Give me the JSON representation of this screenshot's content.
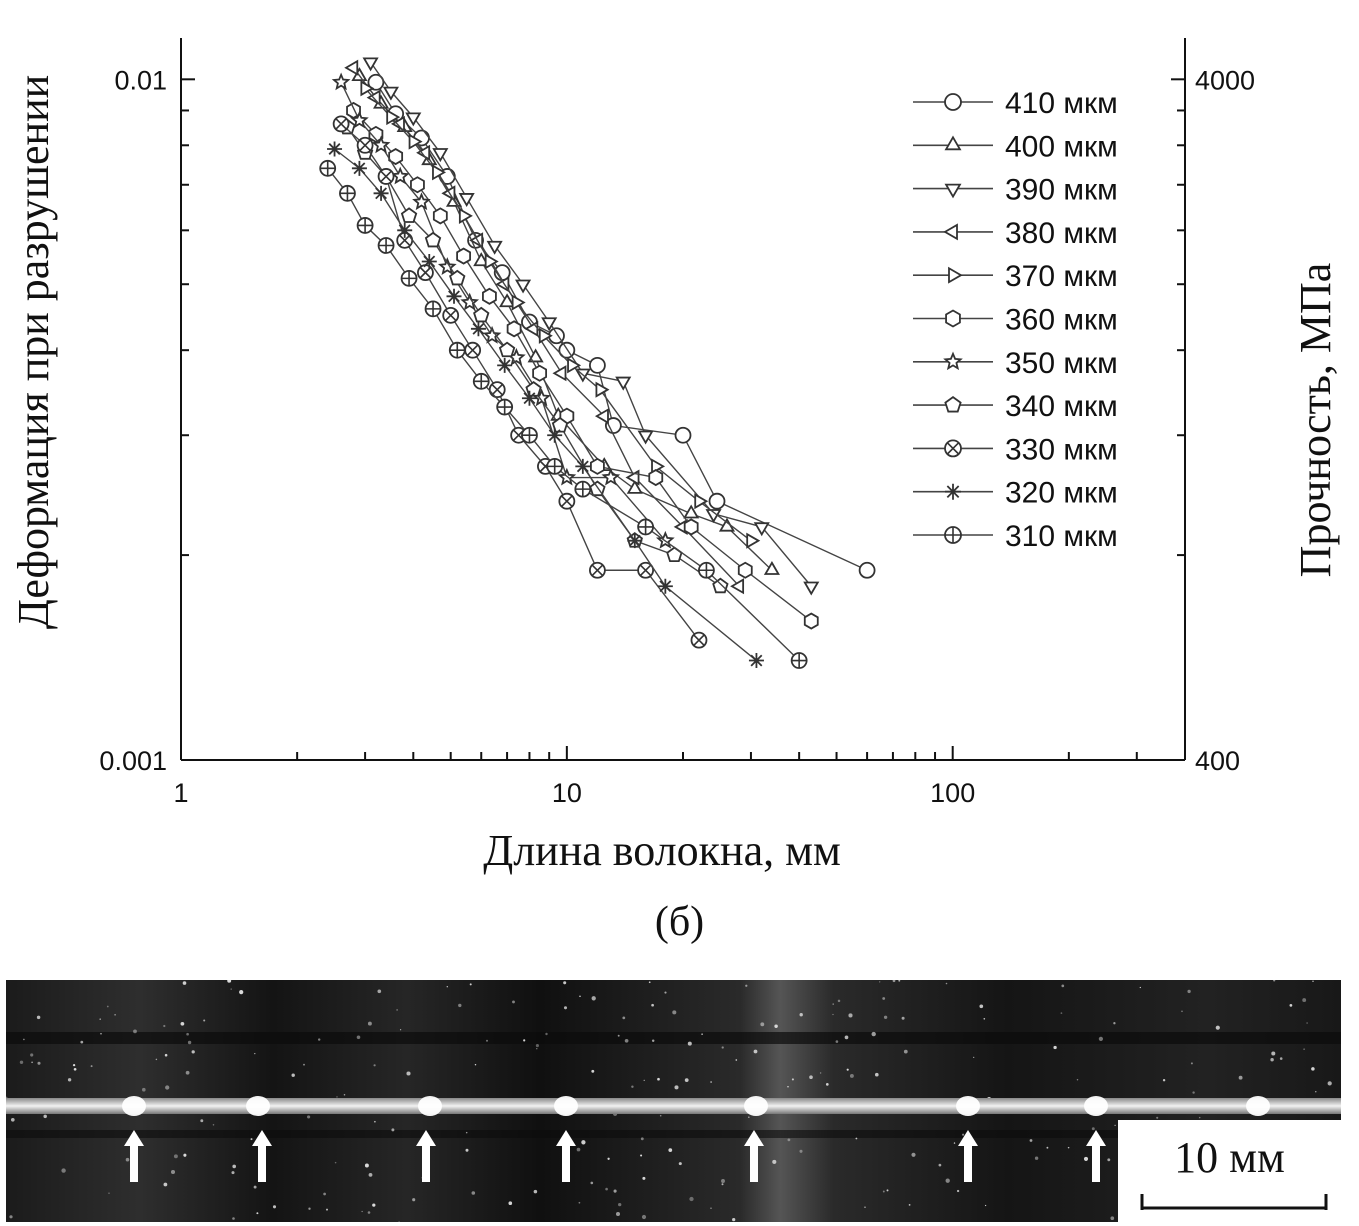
{
  "chart_data": {
    "type": "scatter",
    "x_scale": "log",
    "y_scale": "log",
    "xlim": [
      1,
      400
    ],
    "ylim": [
      0.001,
      0.0115
    ],
    "xlabel": "Длина волокна, мм",
    "ylabel": "Деформация при разрушении",
    "y2label": "Прочность, МПа",
    "x_ticks": [
      "1",
      "10",
      "100"
    ],
    "y_ticks": [
      "0.01",
      "0.001"
    ],
    "y2_ticks": [
      "4000",
      "400"
    ],
    "y2_values": [
      4000,
      400
    ],
    "grid": false,
    "legend_position": "top-right",
    "series": [
      {
        "name": "410 мкм",
        "marker": "circle",
        "x": [
          3.2,
          3.6,
          4.2,
          4.9,
          5.8,
          6.8,
          8.0,
          9.4,
          10.0,
          12.0,
          13.2,
          20.0,
          24.5,
          60.0
        ],
        "y": [
          0.0099,
          0.0089,
          0.0082,
          0.0072,
          0.0058,
          0.0052,
          0.0044,
          0.0042,
          0.004,
          0.0038,
          0.0031,
          0.003,
          0.0024,
          0.0019
        ]
      },
      {
        "name": "400 мкм",
        "marker": "triangle-up",
        "x": [
          2.9,
          3.3,
          3.8,
          4.4,
          5.1,
          6.0,
          7.0,
          8.3,
          9.5,
          12.5,
          15.0,
          21.0,
          26.0,
          34.0
        ],
        "y": [
          0.0101,
          0.0092,
          0.0085,
          0.0076,
          0.0066,
          0.0054,
          0.0047,
          0.0039,
          0.0032,
          0.0027,
          0.0025,
          0.0023,
          0.0022,
          0.0019
        ]
      },
      {
        "name": "390 мкм",
        "marker": "triangle-down",
        "x": [
          3.1,
          3.5,
          4.0,
          4.7,
          5.5,
          6.5,
          7.7,
          9.0,
          11.0,
          14.0,
          16.0,
          24.0,
          32.0,
          43.0
        ],
        "y": [
          0.0106,
          0.0096,
          0.0088,
          0.0078,
          0.0067,
          0.0057,
          0.005,
          0.0044,
          0.0037,
          0.0036,
          0.003,
          0.0023,
          0.0022,
          0.0018
        ]
      },
      {
        "name": "380 мкм",
        "marker": "triangle-left",
        "x": [
          2.8,
          3.2,
          3.7,
          4.3,
          5.0,
          5.9,
          6.9,
          8.2,
          9.7,
          12.5,
          15.0,
          20.0,
          28.0
        ],
        "y": [
          0.0104,
          0.0094,
          0.0086,
          0.0078,
          0.0068,
          0.0058,
          0.005,
          0.0043,
          0.0037,
          0.0032,
          0.0026,
          0.0022,
          0.0018
        ]
      },
      {
        "name": "370 мкм",
        "marker": "triangle-right",
        "x": [
          3.0,
          3.5,
          4.0,
          4.6,
          5.4,
          6.3,
          7.4,
          8.7,
          10.3,
          12.2,
          17.0,
          22.0,
          30.0
        ],
        "y": [
          0.0097,
          0.0088,
          0.0081,
          0.0073,
          0.0063,
          0.0054,
          0.0047,
          0.0042,
          0.0038,
          0.0035,
          0.0027,
          0.0024,
          0.0021
        ]
      },
      {
        "name": "360 мкм",
        "marker": "hexagon",
        "x": [
          2.8,
          3.2,
          3.6,
          4.1,
          4.7,
          5.4,
          6.3,
          7.3,
          8.5,
          10.0,
          12.0,
          17.0,
          21.0,
          29.0,
          43.0
        ],
        "y": [
          0.009,
          0.0083,
          0.0077,
          0.007,
          0.0063,
          0.0055,
          0.0048,
          0.0043,
          0.0037,
          0.0032,
          0.0027,
          0.0026,
          0.0022,
          0.0019,
          0.0016
        ]
      },
      {
        "name": "350 мкм",
        "marker": "star",
        "x": [
          2.6,
          2.9,
          3.3,
          3.7,
          4.2,
          4.9,
          5.6,
          6.4,
          7.4,
          8.6,
          10.0,
          13.0,
          18.0
        ],
        "y": [
          0.0099,
          0.0087,
          0.008,
          0.0072,
          0.0066,
          0.0053,
          0.0047,
          0.0042,
          0.0039,
          0.0034,
          0.0026,
          0.0026,
          0.0021
        ]
      },
      {
        "name": "340 мкм",
        "marker": "pentagon",
        "x": [
          2.7,
          3.0,
          3.4,
          3.9,
          4.5,
          5.2,
          6.0,
          7.0,
          8.2,
          9.6,
          12.0,
          15.0,
          19.0,
          25.0
        ],
        "y": [
          0.0085,
          0.0078,
          0.0072,
          0.0063,
          0.0058,
          0.0051,
          0.0045,
          0.004,
          0.0035,
          0.0031,
          0.0025,
          0.0021,
          0.002,
          0.0018
        ]
      },
      {
        "name": "330 мкм",
        "marker": "circle-x",
        "x": [
          2.6,
          3.0,
          3.4,
          3.8,
          4.3,
          5.0,
          5.7,
          6.6,
          7.5,
          8.8,
          10.0,
          12.0,
          16.0,
          22.0
        ],
        "y": [
          0.0086,
          0.008,
          0.0072,
          0.0058,
          0.0052,
          0.0045,
          0.004,
          0.0035,
          0.003,
          0.0027,
          0.0024,
          0.0019,
          0.0019,
          0.0015
        ]
      },
      {
        "name": "320 мкм",
        "marker": "asterisk",
        "x": [
          2.5,
          2.9,
          3.3,
          3.8,
          4.4,
          5.1,
          5.9,
          6.9,
          8.0,
          9.3,
          11.0,
          15.0,
          18.0,
          31.0
        ],
        "y": [
          0.0079,
          0.0074,
          0.0068,
          0.006,
          0.0054,
          0.0048,
          0.0043,
          0.0038,
          0.0034,
          0.003,
          0.0027,
          0.0021,
          0.0018,
          0.0014
        ]
      },
      {
        "name": "310 мкм",
        "marker": "circle-plus",
        "x": [
          2.4,
          2.7,
          3.0,
          3.4,
          3.9,
          4.5,
          5.2,
          6.0,
          6.9,
          8.0,
          9.3,
          11.0,
          16.0,
          23.0,
          40.0
        ],
        "y": [
          0.0074,
          0.0068,
          0.0061,
          0.0057,
          0.0051,
          0.0046,
          0.004,
          0.0036,
          0.0033,
          0.003,
          0.0027,
          0.0025,
          0.0022,
          0.0019,
          0.0014
        ]
      }
    ]
  },
  "panel_label": "(б)",
  "photo": {
    "scale_bar_label": "10 мм",
    "arrow_count": 7
  }
}
